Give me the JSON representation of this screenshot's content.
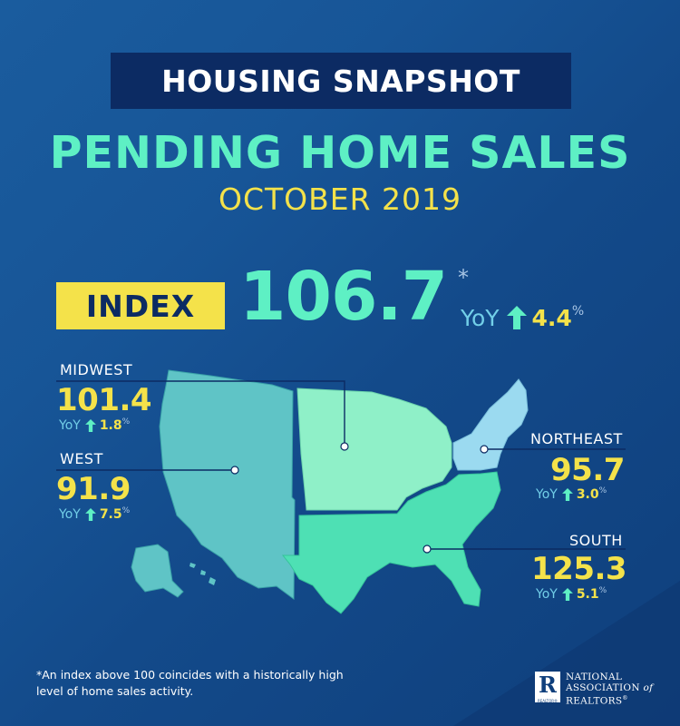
{
  "header": {
    "title": "HOUSING SNAPSHOT"
  },
  "main": {
    "title": "PENDING HOME SALES",
    "subtitle": "OCTOBER 2019"
  },
  "index": {
    "badge": "INDEX",
    "value": "106.7",
    "asterisk": "*",
    "yoy_label": "YoY",
    "yoy_value": "4.4",
    "pct": "%"
  },
  "regions": {
    "midwest": {
      "name": "MIDWEST",
      "value": "101.4",
      "yoy_label": "YoY",
      "yoy_value": "1.8",
      "pct": "%"
    },
    "west": {
      "name": "WEST",
      "value": "91.9",
      "yoy_label": "YoY",
      "yoy_value": "7.5",
      "pct": "%"
    },
    "northeast": {
      "name": "NORTHEAST",
      "value": "95.7",
      "yoy_label": "YoY",
      "yoy_value": "3.0",
      "pct": "%"
    },
    "south": {
      "name": "SOUTH",
      "value": "125.3",
      "yoy_label": "YoY",
      "yoy_value": "5.1",
      "pct": "%"
    }
  },
  "footnote": "*An index above 100 coincides with a historically high level of home sales activity.",
  "logo": {
    "letter": "R",
    "line1": "NATIONAL",
    "line2": "ASSOCIATION",
    "of": "of",
    "line3": "REALTORS",
    "sup": "®",
    "sub": "REALTOR®"
  },
  "colors": {
    "background": "#175597",
    "header_box": "#0c2b63",
    "title": "#5ef0c4",
    "accent_yellow": "#f4e24a",
    "west_region": "#5fc4c6",
    "midwest_region": "#8ff0c8",
    "northeast_region": "#9bdaf0",
    "south_region": "#4ee0b4",
    "arrow": "#5ef0c4"
  },
  "icons": {
    "arrow": "arrow-up-icon",
    "map": "us-map-icon",
    "logo": "realtor-r-icon"
  }
}
